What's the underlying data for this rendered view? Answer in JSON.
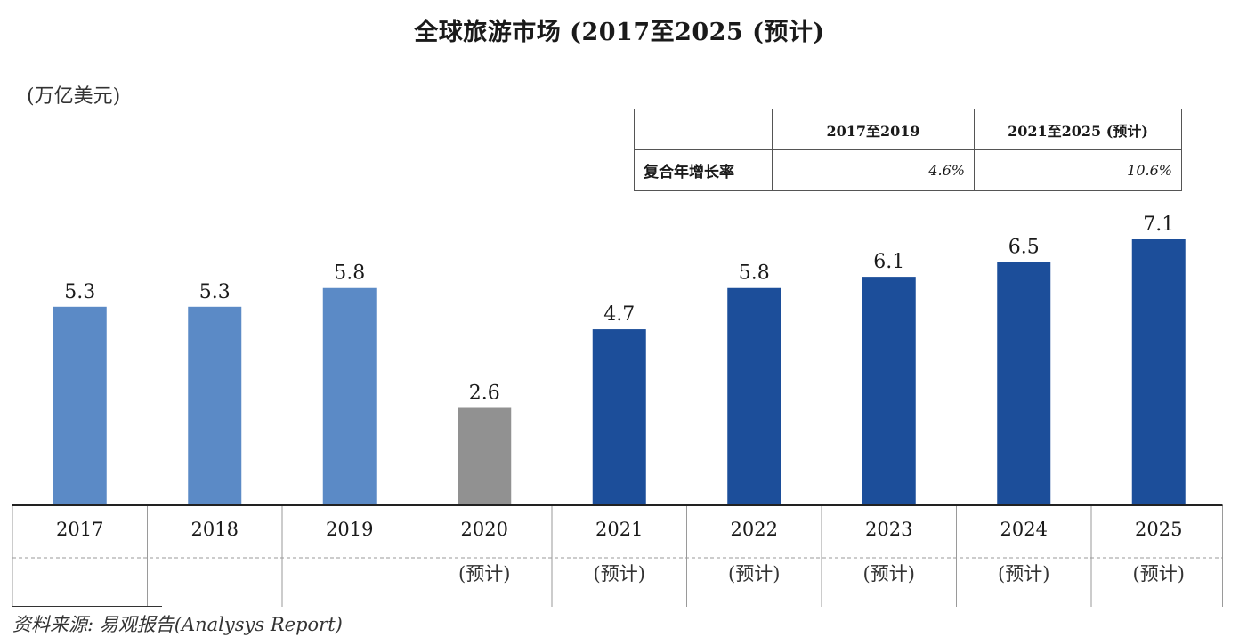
{
  "chart_data": {
    "type": "bar",
    "title": "全球旅游市场  (2017至2025 (预计)",
    "unit_label": "(万亿美元)",
    "categories": [
      "2017",
      "2018",
      "2019",
      "2020",
      "2021",
      "2022",
      "2023",
      "2024",
      "2025"
    ],
    "sublabels": [
      "",
      "",
      "",
      "(预计)",
      "(预计)",
      "(预计)",
      "(预计)",
      "(预计)",
      "(预计)"
    ],
    "values": [
      5.3,
      5.3,
      5.8,
      2.6,
      4.7,
      5.8,
      6.1,
      6.5,
      7.1
    ],
    "value_labels": [
      "5.3",
      "5.3",
      "5.8",
      "2.6",
      "4.7",
      "5.8",
      "6.1",
      "6.5",
      "7.1"
    ],
    "bar_colors": [
      "#5b8ac6",
      "#5b8ac6",
      "#5b8ac6",
      "#919191",
      "#1c4e9a",
      "#1c4e9a",
      "#1c4e9a",
      "#1c4e9a",
      "#1c4e9a"
    ],
    "ylim": [
      0,
      7.1
    ]
  },
  "cagr_table": {
    "col1_header": "2017至2019",
    "col2_header": "2021至2025 (预计)",
    "row_label": "复合年增长率",
    "col1_value": "4.6%",
    "col2_value": "10.6%"
  },
  "source": "资料来源:   易观报告(Analysys Report)"
}
